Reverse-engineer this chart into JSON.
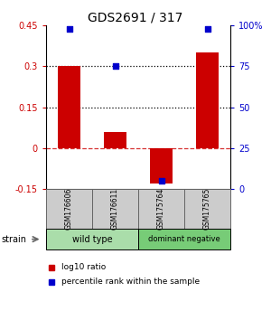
{
  "title": "GDS2691 / 317",
  "samples": [
    "GSM176606",
    "GSM176611",
    "GSM175764",
    "GSM175765"
  ],
  "log10_ratio": [
    0.3,
    0.06,
    -0.13,
    0.35
  ],
  "percentile_rank": [
    98,
    75,
    5,
    98
  ],
  "bar_color": "#cc0000",
  "dot_color": "#0000cc",
  "ylim_left": [
    -0.15,
    0.45
  ],
  "ylim_right": [
    0,
    100
  ],
  "yticks_left": [
    -0.15,
    0,
    0.15,
    0.3,
    0.45
  ],
  "ytick_left_labels": [
    "-0.15",
    "0",
    "0.15",
    "0.3",
    "0.45"
  ],
  "yticks_right": [
    0,
    25,
    50,
    75,
    100
  ],
  "ytick_right_labels": [
    "0",
    "25",
    "50",
    "75",
    "100%"
  ],
  "hline_dotted": [
    0.15,
    0.3
  ],
  "hline_dashed": 0.0,
  "groups": [
    {
      "label": "wild type",
      "samples": [
        0,
        1
      ],
      "color": "#aaddaa"
    },
    {
      "label": "dominant negative",
      "samples": [
        2,
        3
      ],
      "color": "#77cc77"
    }
  ],
  "left_color": "#cc0000",
  "right_color": "#0000cc",
  "strain_label": "strain",
  "legend_items": [
    {
      "color": "#cc0000",
      "label": "log10 ratio"
    },
    {
      "color": "#0000cc",
      "label": "percentile rank within the sample"
    }
  ],
  "bar_width": 0.5,
  "sample_box_color": "#cccccc",
  "sample_box_edge": "#666666",
  "bg_color": "#ffffff"
}
